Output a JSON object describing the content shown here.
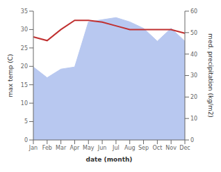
{
  "chart_data": {
    "type": "combo",
    "categories": [
      "Jan",
      "Feb",
      "Mar",
      "Apr",
      "May",
      "Jun",
      "Jul",
      "Aug",
      "Sep",
      "Oct",
      "Nov",
      "Dec"
    ],
    "xlabel": "date (month)",
    "ylabel": "max temp (C)",
    "y2label": "med. precipitation (kg/m2)",
    "ylim": [
      0,
      35
    ],
    "yticks": [
      0,
      5,
      10,
      15,
      20,
      25,
      30,
      35
    ],
    "y2lim": [
      0,
      60
    ],
    "y2ticks": [
      0,
      10,
      20,
      30,
      40,
      50,
      60
    ],
    "series": [
      {
        "type": "area",
        "axis": "y2",
        "color": "#b8c8f0",
        "values": [
          34,
          29,
          33,
          34,
          55,
          56,
          57,
          55,
          52,
          46,
          52,
          46
        ]
      },
      {
        "type": "line",
        "axis": "y",
        "color": "#c03030",
        "values": [
          28,
          27,
          30,
          32.5,
          32.5,
          32,
          31,
          30,
          30,
          30,
          30,
          29
        ]
      }
    ]
  }
}
